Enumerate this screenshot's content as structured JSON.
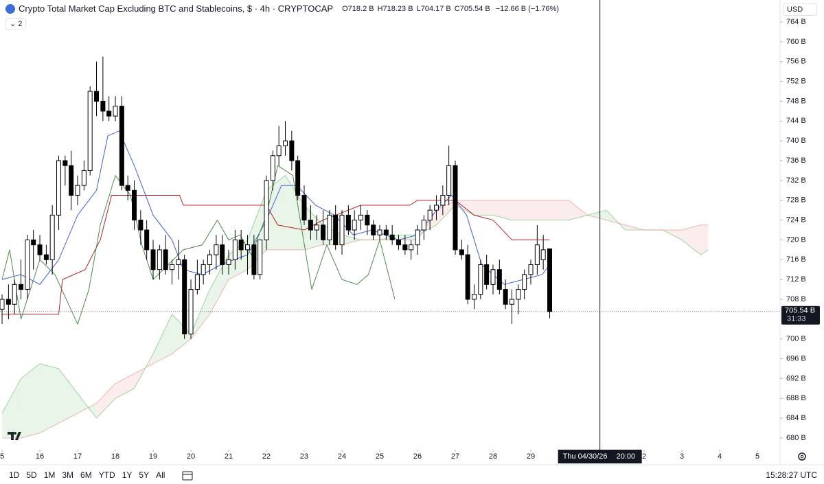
{
  "chart_data": {
    "type": "candlestick",
    "title": "Crypto Total Market Cap Excluding BTC and Stablecoins, $ · 4h · CRYPTOCAP",
    "ohlc_legend": [
      {
        "label": "O",
        "value": "718.2 B"
      },
      {
        "label": "H",
        "value": "718.23 B"
      },
      {
        "label": "L",
        "value": "704.17 B"
      },
      {
        "label": "C",
        "value": "705.54 B"
      }
    ],
    "change": "−12.66 B (−1.76%)",
    "indicator_count": "2",
    "currency": "USD",
    "last_price_label": "705.54 B",
    "countdown": "31:33",
    "crosshair": {
      "x": 30.83,
      "date": "Thu 04/30/26",
      "time": "20:00"
    },
    "timeframes": [
      "1D",
      "5D",
      "1M",
      "3M",
      "6M",
      "YTD",
      "1Y",
      "5Y",
      "All"
    ],
    "clock": "15:28:27 UTC",
    "up_color": "#ffffff",
    "down_color": "#000000",
    "x": [
      15,
      15.17,
      15.33,
      15.5,
      15.67,
      15.83,
      16,
      16.17,
      16.33,
      16.5,
      16.67,
      16.83,
      17,
      17.17,
      17.33,
      17.5,
      17.67,
      17.83,
      18,
      18.17,
      18.33,
      18.5,
      18.67,
      18.83,
      19,
      19.17,
      19.33,
      19.5,
      19.67,
      19.83,
      20,
      20.17,
      20.33,
      20.5,
      20.67,
      20.83,
      21,
      21.17,
      21.33,
      21.5,
      21.67,
      21.83,
      22,
      22.17,
      22.33,
      22.5,
      22.67,
      22.83,
      23,
      23.17,
      23.33,
      23.5,
      23.67,
      23.83,
      24,
      24.17,
      24.33,
      24.5,
      24.67,
      24.83,
      25,
      25.17,
      25.33,
      25.5,
      25.67,
      25.83,
      26,
      26.17,
      26.33,
      26.5,
      26.67,
      26.83,
      27,
      27.17,
      27.33,
      27.5,
      27.67,
      27.83,
      28,
      28.17,
      28.33,
      28.5,
      28.67,
      28.83,
      29,
      29.17,
      29.33,
      29.5
    ],
    "candles": [
      [
        706,
        709,
        703,
        708
      ],
      [
        708,
        711,
        704,
        707
      ],
      [
        707,
        712,
        705,
        711
      ],
      [
        711,
        716,
        708,
        710
      ],
      [
        710,
        721,
        708,
        720
      ],
      [
        720,
        722,
        714,
        719
      ],
      [
        719,
        721,
        716,
        717
      ],
      [
        717,
        719,
        715,
        716
      ],
      [
        716,
        727,
        713,
        725
      ],
      [
        725,
        737,
        722,
        736
      ],
      [
        736,
        737,
        731,
        735
      ],
      [
        735,
        738,
        726,
        729
      ],
      [
        729,
        733,
        727,
        731
      ],
      [
        731,
        736,
        730,
        734
      ],
      [
        734,
        751,
        733,
        750
      ],
      [
        750,
        756,
        745,
        748
      ],
      [
        748,
        757,
        744,
        746
      ],
      [
        746,
        749,
        744,
        745
      ],
      [
        745,
        749,
        744,
        747
      ],
      [
        747,
        749,
        730,
        731
      ],
      [
        731,
        733,
        728,
        730
      ],
      [
        730,
        732,
        722,
        724
      ],
      [
        724,
        726,
        719,
        722
      ],
      [
        722,
        724,
        716,
        718
      ],
      [
        718,
        720,
        712,
        714
      ],
      [
        714,
        719,
        712,
        718
      ],
      [
        718,
        721,
        713,
        714
      ],
      [
        714,
        716,
        711,
        715
      ],
      [
        715,
        720,
        712,
        716
      ],
      [
        716,
        717,
        700,
        701
      ],
      [
        701,
        712,
        700,
        710
      ],
      [
        710,
        716,
        709,
        713
      ],
      [
        713,
        716,
        711,
        715
      ],
      [
        715,
        718,
        713,
        717
      ],
      [
        717,
        721,
        714,
        719
      ],
      [
        719,
        721,
        713,
        715
      ],
      [
        715,
        718,
        713,
        716
      ],
      [
        716,
        722,
        714,
        720
      ],
      [
        720,
        722,
        716,
        718
      ],
      [
        718,
        721,
        713,
        719
      ],
      [
        719,
        721,
        712,
        713
      ],
      [
        713,
        720,
        712,
        720
      ],
      [
        720,
        733,
        718,
        732
      ],
      [
        732,
        738,
        730,
        737
      ],
      [
        737,
        743,
        735,
        739
      ],
      [
        739,
        744,
        737,
        740
      ],
      [
        740,
        742,
        734,
        736
      ],
      [
        736,
        737,
        728,
        729
      ],
      [
        729,
        731,
        723,
        724
      ],
      [
        724,
        727,
        720,
        722
      ],
      [
        722,
        725,
        720,
        723
      ],
      [
        723,
        726,
        719,
        720
      ],
      [
        720,
        726,
        719,
        725
      ],
      [
        725,
        727,
        718,
        719
      ],
      [
        719,
        726,
        717,
        725
      ],
      [
        725,
        727,
        721,
        722
      ],
      [
        722,
        726,
        720,
        724
      ],
      [
        724,
        727,
        722,
        725
      ],
      [
        725,
        726,
        721,
        723
      ],
      [
        723,
        724,
        720,
        721
      ],
      [
        721,
        723,
        720,
        722
      ],
      [
        722,
        723,
        720,
        721
      ],
      [
        721,
        723,
        719,
        720
      ],
      [
        720,
        721,
        718,
        719
      ],
      [
        719,
        721,
        717,
        718
      ],
      [
        718,
        720,
        716,
        719
      ],
      [
        719,
        723,
        717,
        722
      ],
      [
        722,
        725,
        720,
        724
      ],
      [
        724,
        727,
        722,
        726
      ],
      [
        726,
        729,
        724,
        727
      ],
      [
        727,
        731,
        725,
        729
      ],
      [
        729,
        739,
        727,
        735
      ],
      [
        735,
        736,
        717,
        718
      ],
      [
        718,
        720,
        716,
        717
      ],
      [
        717,
        719,
        707,
        708
      ],
      [
        708,
        711,
        706,
        709
      ],
      [
        709,
        716,
        708,
        715
      ],
      [
        715,
        717,
        710,
        711
      ],
      [
        711,
        715,
        709,
        714
      ],
      [
        714,
        716,
        709,
        710
      ],
      [
        710,
        712,
        706,
        707
      ],
      [
        707,
        710,
        703,
        708
      ],
      [
        708,
        711,
        705,
        710
      ],
      [
        710,
        714,
        708,
        713
      ],
      [
        713,
        716,
        711,
        715
      ],
      [
        715,
        723,
        713,
        719
      ],
      [
        716,
        721,
        714,
        718
      ],
      [
        718.2,
        718.23,
        704.17,
        705.54
      ]
    ],
    "lines": [
      {
        "color": "#3d5fd9",
        "x": [
          15,
          15.5,
          16,
          16.5,
          17,
          17.5,
          17.8,
          18.1,
          18.5,
          19,
          19.5,
          19.8,
          20.3,
          20.8,
          21.5,
          22,
          22.4,
          22.8,
          23.3,
          23.8,
          24.3,
          24.8,
          25.5,
          26,
          26.5,
          26.9,
          27.3,
          27.7,
          28.3,
          28.8,
          29.3,
          29.5
        ],
        "values": [
          712,
          713,
          711,
          716,
          725,
          730,
          741,
          742,
          735,
          725,
          720,
          714,
          713,
          715,
          717,
          724,
          731,
          731,
          727,
          725,
          721,
          722,
          720,
          721,
          726,
          729,
          725,
          715,
          711,
          712,
          713,
          715
        ]
      },
      {
        "color": "#b22222",
        "x": [
          15,
          16.5,
          16.6,
          17.2,
          17.6,
          17.9,
          19.7,
          19.8,
          22,
          22.3,
          23,
          23.5,
          24.5,
          25,
          25.8,
          26,
          27,
          27.5,
          28,
          28.5,
          29.5
        ],
        "values": [
          705,
          705,
          712,
          714,
          720,
          729,
          729,
          727,
          727,
          723,
          722,
          724,
          727,
          727,
          727,
          728,
          728,
          725,
          724,
          720,
          720
        ]
      },
      {
        "color": "#4a8a4a",
        "x": [
          15,
          15.2,
          15.5,
          16,
          16.4,
          17,
          17.3,
          17.6,
          18,
          18.4,
          18.7,
          19,
          19.4,
          19.8,
          20.3,
          20.7,
          21,
          21.3,
          21.6,
          22,
          22.3,
          22.7,
          23.2,
          23.6,
          24,
          24.4,
          24.7,
          25,
          25.3,
          25.4
        ],
        "values": [
          712,
          718,
          704,
          716,
          713,
          703,
          710,
          723,
          733,
          729,
          719,
          712,
          715,
          718,
          719,
          724,
          720,
          721,
          717,
          725,
          735,
          733,
          710,
          719,
          712,
          711,
          713,
          720,
          711,
          708
        ]
      }
    ],
    "cloud": {
      "up_color": "#4caf50",
      "down_color": "#e57373",
      "x": [
        15,
        15.5,
        16,
        16.5,
        17,
        17.5,
        18,
        18.5,
        19,
        19.5,
        20,
        20.5,
        21,
        21.5,
        22,
        22.5,
        23,
        23.5,
        24,
        24.5,
        25,
        25.5,
        26,
        26.5,
        27,
        27.5,
        28,
        28.5,
        29,
        29.5,
        30,
        30.5,
        31,
        31.5,
        32,
        32.5,
        33,
        33.5,
        33.7
      ],
      "span_a": [
        685,
        692,
        695,
        694,
        689,
        684,
        688,
        690,
        697,
        705,
        701,
        710,
        717,
        720,
        730,
        733,
        727,
        723,
        721,
        720,
        720,
        721,
        721,
        723,
        727,
        725,
        725,
        724,
        724,
        724,
        724,
        725,
        726,
        722,
        722,
        722,
        720,
        717,
        718
      ],
      "span_b": [
        680,
        680,
        681,
        683,
        685,
        687,
        691,
        693,
        695,
        697,
        700,
        705,
        712,
        714,
        718,
        718,
        718,
        719,
        719,
        720,
        720,
        720,
        720,
        726,
        728,
        728,
        728,
        728,
        728,
        728,
        728,
        725,
        724,
        723,
        722,
        722,
        722,
        723,
        723
      ]
    },
    "xlim": [
      14.945,
      35.6
    ],
    "xticks": [
      {
        "value": 15,
        "label": "5"
      },
      16,
      17,
      18,
      19,
      20,
      21,
      22,
      23,
      24,
      25,
      26,
      27,
      28,
      29,
      {
        "value": 32,
        "label": "2"
      },
      {
        "value": 33,
        "label": "3"
      },
      {
        "value": 34,
        "label": "4"
      },
      {
        "value": 35,
        "label": "5"
      }
    ],
    "ylim": [
      677.64,
      768.44
    ],
    "yticks": [
      {
        "value": 680,
        "label": "680 B"
      },
      {
        "value": 684,
        "label": "684 B"
      },
      {
        "value": 688,
        "label": "688 B"
      },
      {
        "value": 692,
        "label": "692 B"
      },
      {
        "value": 696,
        "label": "696 B"
      },
      {
        "value": 700,
        "label": "700 B"
      },
      {
        "value": 708,
        "label": "708 B"
      },
      {
        "value": 712,
        "label": "712 B"
      },
      {
        "value": 716,
        "label": "716 B"
      },
      {
        "value": 720,
        "label": "720 B"
      },
      {
        "value": 724,
        "label": "724 B"
      },
      {
        "value": 728,
        "label": "728 B"
      },
      {
        "value": 732,
        "label": "732 B"
      },
      {
        "value": 736,
        "label": "736 B"
      },
      {
        "value": 740,
        "label": "740 B"
      },
      {
        "value": 744,
        "label": "744 B"
      },
      {
        "value": 748,
        "label": "748 B"
      },
      {
        "value": 752,
        "label": "752 B"
      },
      {
        "value": 756,
        "label": "756 B"
      },
      {
        "value": 760,
        "label": "760 B"
      },
      {
        "value": 764,
        "label": "764 B"
      }
    ]
  }
}
